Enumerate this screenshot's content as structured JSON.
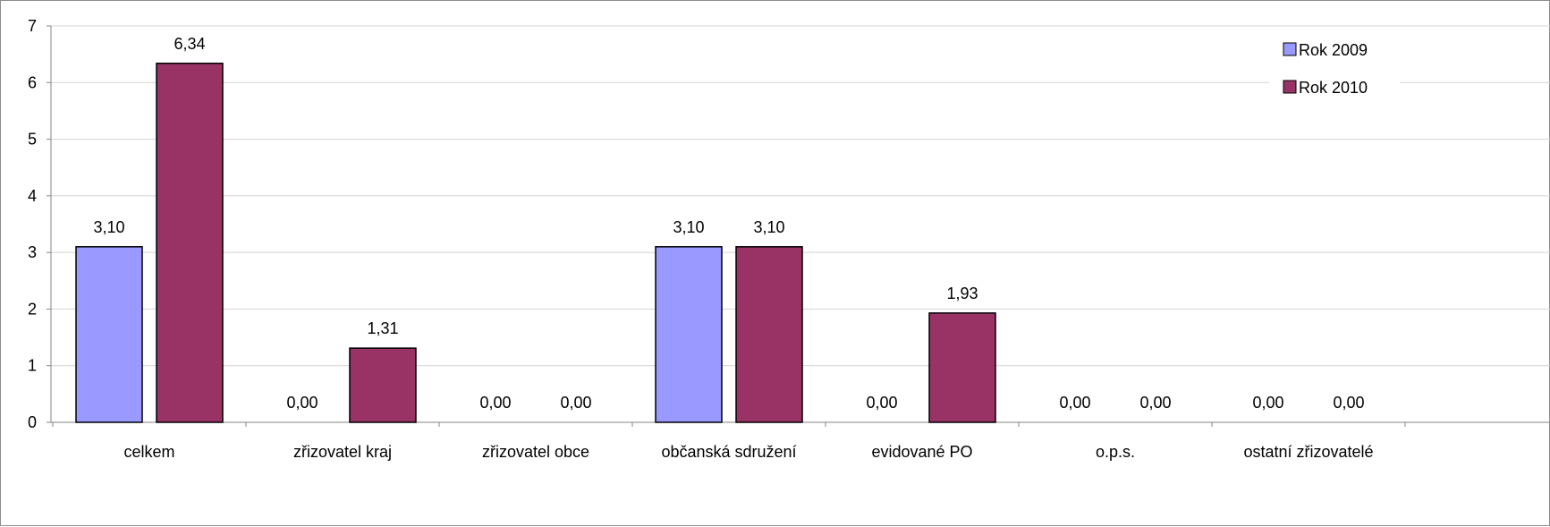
{
  "chart_data": {
    "type": "bar",
    "title": "",
    "xlabel": "",
    "ylabel": "",
    "ylim": [
      0,
      7
    ],
    "yticks": [
      "0",
      "1",
      "2",
      "3",
      "4",
      "5",
      "6",
      "7"
    ],
    "grid": "horizontal",
    "legend_position": "top-right",
    "categories": [
      "celkem",
      "zřizovatel kraj",
      "zřizovatel obce",
      "občanská sdružení",
      "evidované PO",
      "o.p.s.",
      "ostatní zřizovatelé"
    ],
    "series": [
      {
        "name": "Rok 2009",
        "color": "#9999FF",
        "values": [
          3.1,
          0.0,
          0.0,
          3.1,
          0.0,
          0.0,
          0.0
        ],
        "labels": [
          "3,10",
          "0,00",
          "0,00",
          "3,10",
          "0,00",
          "0,00",
          "0,00"
        ]
      },
      {
        "name": "Rok 2010",
        "color": "#993366",
        "values": [
          6.34,
          1.31,
          0.0,
          3.1,
          1.93,
          0.0,
          0.0
        ],
        "labels": [
          "6,34",
          "1,31",
          "0,00",
          "3,10",
          "1,93",
          "0,00",
          "0,00"
        ]
      }
    ]
  }
}
